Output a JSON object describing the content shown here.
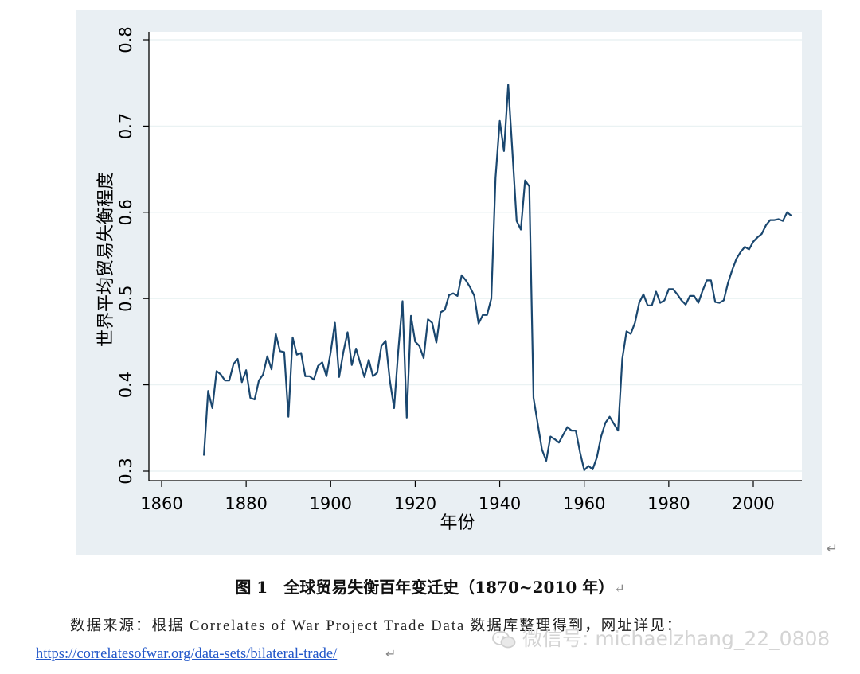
{
  "chart_data": {
    "type": "line",
    "title": "",
    "xlabel": "年份",
    "ylabel": "世界平均贸易失衡程度",
    "xlim": [
      1860,
      2010
    ],
    "ylim": [
      0.3,
      0.8
    ],
    "xticks": [
      1860,
      1880,
      1900,
      1920,
      1940,
      1960,
      1980,
      2000
    ],
    "yticks": [
      0.3,
      0.4,
      0.5,
      0.6,
      0.7,
      0.8
    ],
    "xtick_labels": [
      "1860",
      "1880",
      "1900",
      "1920",
      "1940",
      "1960",
      "1980",
      "2000"
    ],
    "ytick_labels": [
      "0.3",
      "0.4",
      "0.5",
      "0.6",
      "0.7",
      "0.8"
    ],
    "grid": true,
    "line_color": "#1a476f",
    "background_color": "#e9eff3",
    "series": [
      {
        "x": [
          1870,
          1871,
          1872,
          1873,
          1874,
          1875,
          1876,
          1877,
          1878,
          1879,
          1880,
          1881,
          1882,
          1883,
          1884,
          1885,
          1886,
          1887,
          1888,
          1889,
          1890,
          1891,
          1892,
          1893,
          1894,
          1895,
          1896,
          1897,
          1898,
          1899,
          1900,
          1901,
          1902,
          1903,
          1904,
          1905,
          1906,
          1907,
          1908,
          1909,
          1910,
          1911,
          1912,
          1913,
          1914,
          1915,
          1916,
          1917,
          1918,
          1919,
          1920,
          1921,
          1922,
          1923,
          1924,
          1925,
          1926,
          1927,
          1928,
          1929,
          1930,
          1931,
          1932,
          1933,
          1934,
          1935,
          1936,
          1937,
          1938,
          1939,
          1940,
          1941,
          1942,
          1943,
          1944,
          1945,
          1946,
          1947,
          1948,
          1949,
          1950,
          1951,
          1952,
          1953,
          1954,
          1955,
          1956,
          1957,
          1958,
          1959,
          1960,
          1961,
          1962,
          1963,
          1964,
          1965,
          1966,
          1967,
          1968,
          1969,
          1970,
          1971,
          1972,
          1973,
          1974,
          1975,
          1976,
          1977,
          1978,
          1979,
          1980,
          1981,
          1982,
          1983,
          1984,
          1985,
          1986,
          1987,
          1988,
          1989,
          1990,
          1991,
          1992,
          1993,
          1994,
          1995,
          1996,
          1997,
          1998,
          1999,
          2000,
          2001,
          2002,
          2003,
          2004,
          2005,
          2006,
          2007,
          2008,
          2009
        ],
        "y": [
          0.318,
          0.393,
          0.373,
          0.416,
          0.412,
          0.405,
          0.405,
          0.424,
          0.43,
          0.403,
          0.417,
          0.385,
          0.383,
          0.405,
          0.412,
          0.433,
          0.418,
          0.459,
          0.439,
          0.438,
          0.363,
          0.455,
          0.435,
          0.437,
          0.41,
          0.41,
          0.406,
          0.422,
          0.426,
          0.41,
          0.438,
          0.472,
          0.409,
          0.438,
          0.461,
          0.423,
          0.442,
          0.425,
          0.409,
          0.429,
          0.41,
          0.414,
          0.445,
          0.451,
          0.405,
          0.373,
          0.44,
          0.497,
          0.362,
          0.48,
          0.45,
          0.445,
          0.431,
          0.476,
          0.472,
          0.449,
          0.484,
          0.487,
          0.504,
          0.506,
          0.503,
          0.527,
          0.521,
          0.513,
          0.503,
          0.471,
          0.481,
          0.481,
          0.5,
          0.64,
          0.706,
          0.671,
          0.748,
          0.67,
          0.59,
          0.58,
          0.637,
          0.63,
          0.385,
          0.355,
          0.325,
          0.312,
          0.34,
          0.337,
          0.333,
          0.342,
          0.351,
          0.347,
          0.347,
          0.322,
          0.301,
          0.306,
          0.302,
          0.316,
          0.34,
          0.356,
          0.363,
          0.355,
          0.347,
          0.43,
          0.462,
          0.459,
          0.472,
          0.495,
          0.505,
          0.492,
          0.492,
          0.508,
          0.495,
          0.498,
          0.511,
          0.511,
          0.505,
          0.498,
          0.493,
          0.503,
          0.503,
          0.495,
          0.509,
          0.521,
          0.521,
          0.496,
          0.495,
          0.498,
          0.518,
          0.533,
          0.546,
          0.554,
          0.56,
          0.557,
          0.566,
          0.571,
          0.575,
          0.585,
          0.591,
          0.591,
          0.592,
          0.59,
          0.6,
          0.596
        ]
      }
    ]
  },
  "caption": {
    "text": "图 1　全球贸易失衡百年变迁史（1870~2010 年）",
    "return_mark": "↵"
  },
  "source": {
    "line": "数据来源：根据 Correlates of War Project Trade Data 数据库整理得到，网址详见：",
    "link": "https://correlatesofwar.org/data-sets/bilateral-trade/",
    "return_mark": "↵"
  },
  "figure_return_mark": "↵",
  "watermark": {
    "text": "微信号: michaelzhang_22_0808",
    "icon": "wechat-icon"
  }
}
